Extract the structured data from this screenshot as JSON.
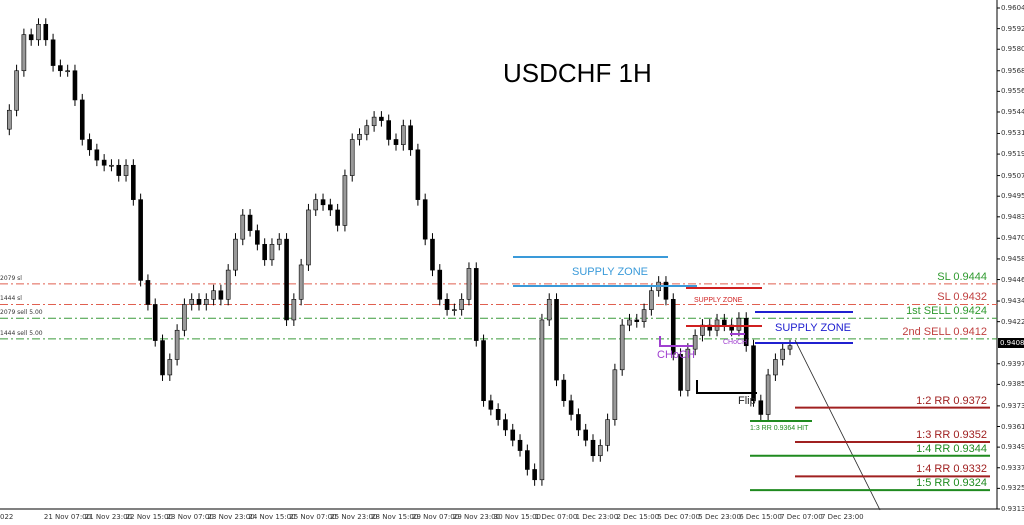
{
  "chart_data": {
    "type": "candlestick",
    "title": "USDCHF 1H",
    "symbol": "USDCHF",
    "timeframe": "1H",
    "ylim": [
      0.9313,
      0.96045
    ],
    "y_ticks": [
      "0.96045",
      "0.95925",
      "0.95805",
      "0.95680",
      "0.95560",
      "0.95440",
      "0.95315",
      "0.95195",
      "0.95070",
      "0.94950",
      "0.94830",
      "0.94705",
      "0.94585",
      "0.94465",
      "0.94340",
      "0.94220",
      "0.93975",
      "0.93855",
      "0.93730",
      "0.93610",
      "0.93490",
      "0.93370",
      "0.93250",
      "0.93130"
    ],
    "x_ticks": [
      "022",
      "21 Nov 07:00",
      "21 Nov 23:00",
      "22 Nov 15:00",
      "23 Nov 07:00",
      "23 Nov 23:00",
      "24 Nov 15:00",
      "25 Nov 07:00",
      "25 Nov 23:00",
      "28 Nov 15:00",
      "29 Nov 07:00",
      "29 Nov 23:00",
      "30 Nov 15:00",
      "1 Dec 07:00",
      "1 Dec 23:00",
      "2 Dec 15:00",
      "5 Dec 07:00",
      "5 Dec 23:00",
      "6 Dec 15:00",
      "7 Dec 07:00",
      "7 Dec 23:00"
    ],
    "current_price": "0.94087",
    "approx_closes": [
      0.9534,
      0.9545,
      0.9568,
      0.9589,
      0.9586,
      0.9595,
      0.9586,
      0.9571,
      0.9568,
      0.9568,
      0.9551,
      0.9528,
      0.9522,
      0.9516,
      0.9513,
      0.9513,
      0.9507,
      0.9513,
      0.9493,
      0.9446,
      0.9432,
      0.9411,
      0.9391,
      0.94,
      0.9417,
      0.9432,
      0.9435,
      0.9432,
      0.9435,
      0.944,
      0.9435,
      0.9452,
      0.947,
      0.9484,
      0.9475,
      0.9467,
      0.9458,
      0.9467,
      0.947,
      0.9423,
      0.9435,
      0.9455,
      0.9487,
      0.9493,
      0.949,
      0.9487,
      0.9478,
      0.9507,
      0.9528,
      0.9531,
      0.9536,
      0.9541,
      0.9539,
      0.9528,
      0.9525,
      0.9536,
      0.9522,
      0.9493,
      0.947,
      0.9452,
      0.9435,
      0.9429,
      0.9429,
      0.9435,
      0.9453,
      0.9411,
      0.9376,
      0.9371,
      0.9365,
      0.9359,
      0.9353,
      0.9347,
      0.9336,
      0.933,
      0.9423,
      0.9435,
      0.9388,
      0.9376,
      0.9368,
      0.9359,
      0.9353,
      0.9344,
      0.935,
      0.9365,
      0.9394,
      0.942,
      0.9423,
      0.9422,
      0.9429,
      0.944,
      0.9445,
      0.9435,
      0.9403,
      0.9382,
      0.9406,
      0.9414,
      0.942,
      0.9417,
      0.9423,
      0.942,
      0.9417,
      0.9424,
      0.9408,
      0.9376,
      0.9368,
      0.9391,
      0.94,
      0.9406,
      0.9408
    ],
    "order_lines": [
      {
        "left_label": "2079 sl",
        "right_label": "SL 0.9444",
        "price": 0.9444,
        "line_color": "#e06050",
        "label_color": "#2f9a2f"
      },
      {
        "left_label": "1444 sl",
        "right_label": "SL 0.9432",
        "price": 0.9432,
        "line_color": "#e06050",
        "label_color": "#c04040"
      },
      {
        "left_label": "2079 sell 5.00",
        "right_label": "1st SELL 0.9424",
        "price": 0.9424,
        "line_color": "#3a9a3a",
        "label_color": "#2f9a2f"
      },
      {
        "left_label": "1444 sell 5.00",
        "right_label": "2nd SELL 0.9412",
        "price": 0.9412,
        "line_color": "#3a9a3a",
        "label_color": "#c04040"
      }
    ],
    "targets": [
      {
        "label": "1:2 RR 0.9372",
        "price": 0.9372,
        "color": "#a02020"
      },
      {
        "label": "1:3 RR 0.9352",
        "price": 0.9352,
        "color": "#a02020"
      },
      {
        "label": "1:4 RR 0.9344",
        "price": 0.9344,
        "color": "#1f8a1f"
      },
      {
        "label": "1:4 RR 0.9332",
        "price": 0.9332,
        "color": "#a02020"
      },
      {
        "label": "1:5 RR 0.9324",
        "price": 0.9324,
        "color": "#1f8a1f"
      }
    ],
    "hit_label": "1:3 RR 0.9364 HIT",
    "annotations": {
      "supply_zone_1": "SUPPLY ZONE",
      "supply_zone_2": "SUPPLY ZONE",
      "supply_zone_3": "SUPPLY ZONE",
      "choch_1": "CHoCH",
      "choch_2": "CHoCH",
      "flip": "Flip"
    },
    "colors": {
      "zone_light_blue": "#3a9ad9",
      "zone_red": "#d02020",
      "zone_blue": "#2020d0",
      "choch": "#a040d0",
      "flip": "#000000",
      "hit": "#1f8a1f"
    }
  }
}
